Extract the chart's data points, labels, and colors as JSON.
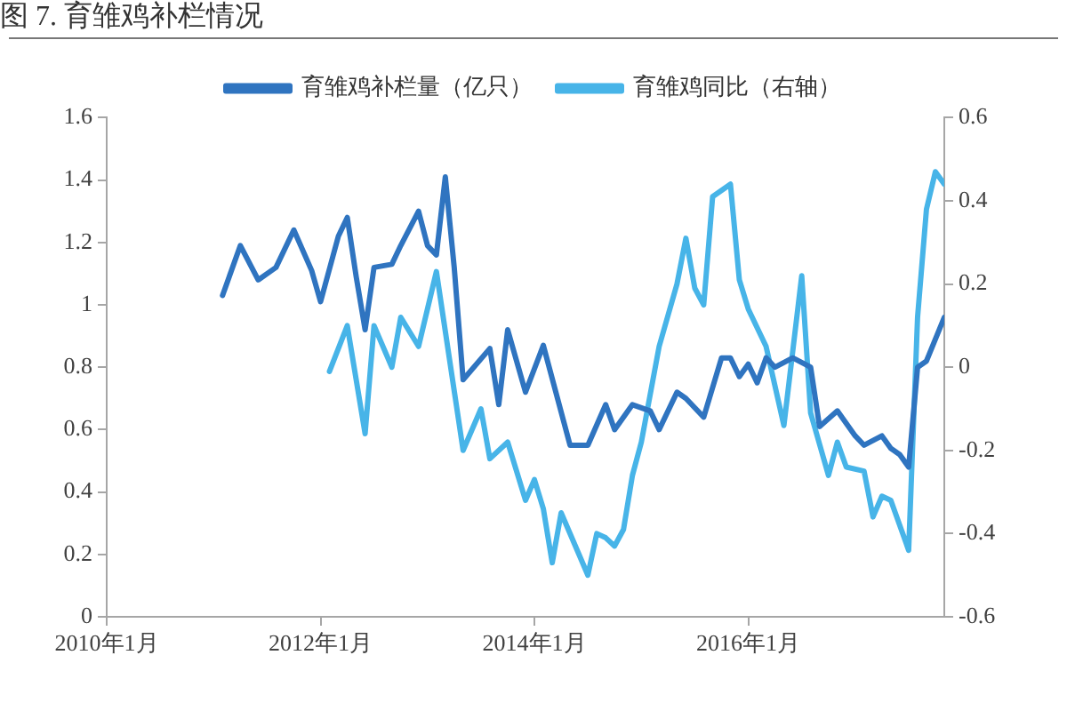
{
  "chart_data": {
    "type": "line",
    "title": "图 7. 育雏鸡补栏情况",
    "legend": "top",
    "xlim": [
      "2010-01",
      "2017-11"
    ],
    "xticks": [
      {
        "value": "2010-01",
        "label": "2010年1月"
      },
      {
        "value": "2012-01",
        "label": "2012年1月"
      },
      {
        "value": "2014-01",
        "label": "2014年1月"
      },
      {
        "value": "2016-01",
        "label": "2016年1月"
      }
    ],
    "ylim": [
      0,
      1.6
    ],
    "yticks": [
      0,
      0.2,
      0.4,
      0.6,
      0.8,
      1,
      1.2,
      1.4,
      1.6
    ],
    "y2lim": [
      -0.6,
      0.6
    ],
    "y2ticks": [
      -0.6,
      -0.4,
      -0.2,
      0,
      0.2,
      0.4,
      0.6
    ],
    "series": [
      {
        "name": "育雏鸡补栏量（亿只）",
        "color": "#2f74c0",
        "x": [
          "2011-02",
          "2011-04",
          "2011-06",
          "2011-08",
          "2011-10",
          "2011-12",
          "2012-01",
          "2012-03",
          "2012-04",
          "2012-05",
          "2012-06",
          "2012-07",
          "2012-09",
          "2012-10",
          "2012-12",
          "2013-01",
          "2013-02",
          "2013-03",
          "2013-04",
          "2013-05",
          "2013-08",
          "2013-09",
          "2013-10",
          "2013-12",
          "2014-02",
          "2014-05",
          "2014-07",
          "2014-09",
          "2014-10",
          "2014-12",
          "2015-02",
          "2015-03",
          "2015-05",
          "2015-06",
          "2015-08",
          "2015-10",
          "2015-11",
          "2015-12",
          "2016-01",
          "2016-02",
          "2016-03",
          "2016-04",
          "2016-06",
          "2016-08",
          "2016-09",
          "2016-11",
          "2017-01",
          "2017-02",
          "2017-04",
          "2017-05",
          "2017-06",
          "2017-07",
          "2017-08",
          "2017-09",
          "2017-11"
        ],
        "values": [
          1.03,
          1.19,
          1.08,
          1.12,
          1.24,
          1.11,
          1.01,
          1.22,
          1.28,
          1.09,
          0.92,
          1.12,
          1.13,
          1.19,
          1.3,
          1.19,
          1.16,
          1.41,
          1.12,
          0.76,
          0.86,
          0.68,
          0.92,
          0.72,
          0.87,
          0.55,
          0.55,
          0.68,
          0.6,
          0.68,
          0.66,
          0.6,
          0.72,
          0.7,
          0.64,
          0.83,
          0.83,
          0.77,
          0.81,
          0.75,
          0.83,
          0.8,
          0.83,
          0.8,
          0.61,
          0.66,
          0.58,
          0.55,
          0.58,
          0.54,
          0.52,
          0.48,
          0.8,
          0.82,
          0.96
        ]
      },
      {
        "name": "育雏鸡同比（右轴）",
        "color": "#47b4e8",
        "axis": "y2",
        "x": [
          "2012-02",
          "2012-04",
          "2012-06",
          "2012-07",
          "2012-09",
          "2012-10",
          "2012-12",
          "2013-02",
          "2013-05",
          "2013-07",
          "2013-08",
          "2013-10",
          "2013-12",
          "2014-01",
          "2014-02",
          "2014-03",
          "2014-04",
          "2014-06",
          "2014-07",
          "2014-08",
          "2014-09",
          "2014-10",
          "2014-11",
          "2014-12",
          "2015-01",
          "2015-03",
          "2015-05",
          "2015-06",
          "2015-07",
          "2015-08",
          "2015-09",
          "2015-11",
          "2015-12",
          "2016-01",
          "2016-03",
          "2016-05",
          "2016-07",
          "2016-08",
          "2016-10",
          "2016-11",
          "2016-12",
          "2017-02",
          "2017-03",
          "2017-04",
          "2017-05",
          "2017-07",
          "2017-08",
          "2017-09",
          "2017-10",
          "2017-11"
        ],
        "values": [
          -0.01,
          0.1,
          -0.16,
          0.1,
          0.0,
          0.12,
          0.05,
          0.23,
          -0.2,
          -0.1,
          -0.22,
          -0.18,
          -0.32,
          -0.27,
          -0.34,
          -0.47,
          -0.35,
          -0.45,
          -0.5,
          -0.4,
          -0.41,
          -0.43,
          -0.39,
          -0.26,
          -0.18,
          0.05,
          0.2,
          0.31,
          0.19,
          0.15,
          0.41,
          0.44,
          0.21,
          0.14,
          0.05,
          -0.14,
          0.22,
          -0.11,
          -0.26,
          -0.18,
          -0.24,
          -0.25,
          -0.36,
          -0.31,
          -0.32,
          -0.44,
          0.12,
          0.38,
          0.47,
          0.44
        ]
      }
    ]
  }
}
